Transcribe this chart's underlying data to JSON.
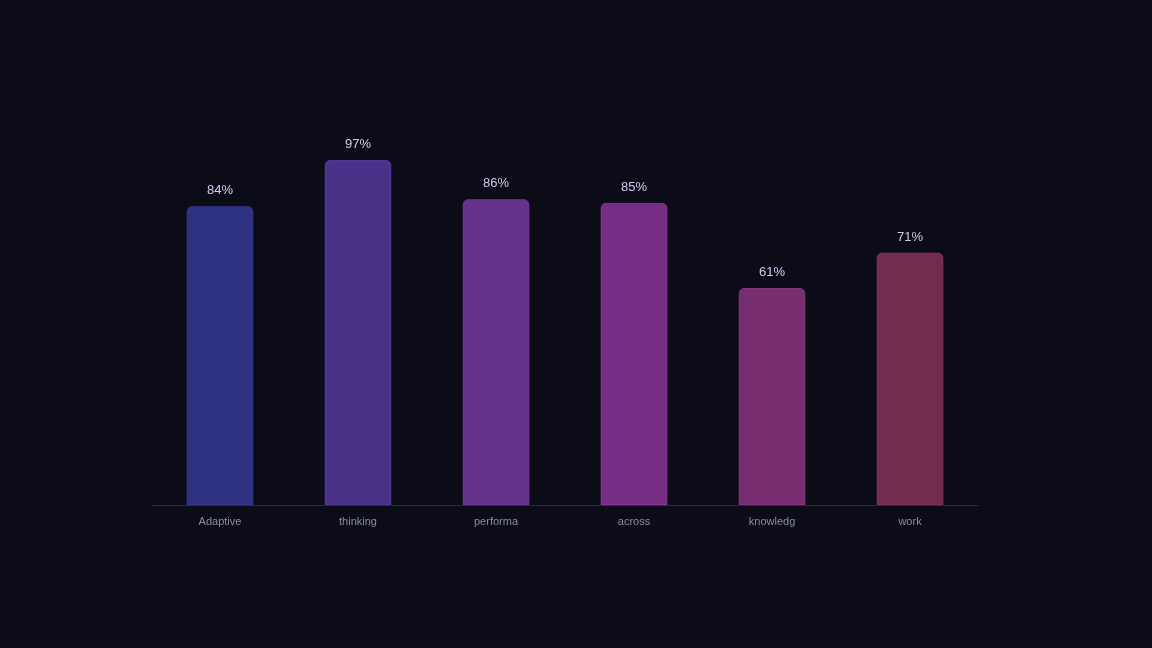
{
  "chart_data": {
    "type": "bar",
    "categories": [
      "Adaptive",
      "thinking",
      "performa",
      "across",
      "knowledg",
      "work"
    ],
    "values": [
      84,
      97,
      86,
      85,
      61,
      71
    ],
    "colors": [
      "#363a94",
      "#56399c",
      "#76399f",
      "#8c3499",
      "#8a3580",
      "#853257"
    ],
    "value_labels": [
      "84%",
      "97%",
      "86%",
      "85%",
      "61%",
      "71%"
    ],
    "grid": false
  }
}
